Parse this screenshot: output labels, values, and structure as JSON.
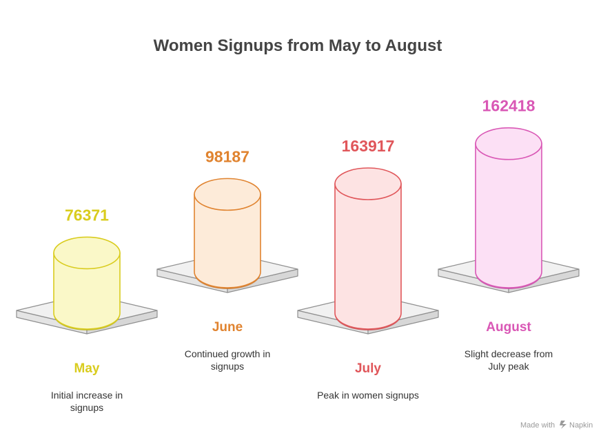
{
  "chart_data": {
    "type": "bar",
    "title": "Women Signups from May to August",
    "categories": [
      "May",
      "June",
      "July",
      "August"
    ],
    "values": [
      76371,
      98187,
      163917,
      162418
    ],
    "value_labels": [
      "76371",
      "98187",
      "163917",
      "162418"
    ],
    "descriptions": [
      [
        "Initial increase in",
        "signups"
      ],
      [
        "Continued growth in",
        "signups"
      ],
      [
        "Peak in women signups"
      ],
      [
        "Slight decrease from",
        "July peak"
      ]
    ],
    "colors": {
      "May": {
        "text": "#D9CC1E",
        "stroke": "#D9CC1E",
        "fill": "#FAF8C8",
        "base": "#BCB41A"
      },
      "June": {
        "text": "#E0832F",
        "stroke": "#E0832F",
        "fill": "#FDEBD9",
        "base": "#C9762A"
      },
      "July": {
        "text": "#E0565A",
        "stroke": "#E0565A",
        "fill": "#FDE3E3",
        "base": "#C94B4F"
      },
      "August": {
        "text": "#D957B5",
        "stroke": "#D957B5",
        "fill": "#FCE0F5",
        "base": "#C24CA3"
      }
    },
    "xlabel": "",
    "ylabel": ""
  },
  "footer": {
    "made_with": "Made with",
    "brand": "Napkin"
  }
}
